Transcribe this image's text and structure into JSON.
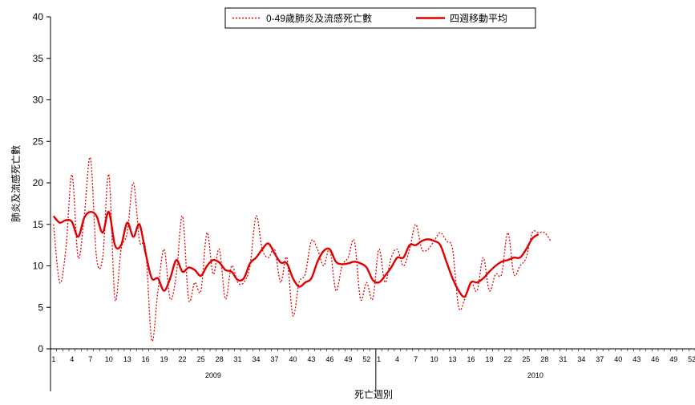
{
  "chart_data": {
    "type": "line",
    "xlabel": "死亡週別",
    "ylabel": "肺炎及流感死亡數",
    "ylim": [
      0,
      40
    ],
    "yticks": [
      0,
      5,
      10,
      15,
      20,
      25,
      30,
      35,
      40
    ],
    "legend_position": "top-right",
    "grid": false,
    "years": [
      {
        "label": "2009",
        "weeks": 53
      },
      {
        "label": "2010",
        "weeks": 52
      }
    ],
    "x_tick_labels": [
      {
        "year_index": 0,
        "week": 1,
        "label": "1"
      },
      {
        "year_index": 0,
        "week": 4,
        "label": "4"
      },
      {
        "year_index": 0,
        "week": 7,
        "label": "7"
      },
      {
        "year_index": 0,
        "week": 10,
        "label": "10"
      },
      {
        "year_index": 0,
        "week": 13,
        "label": "13"
      },
      {
        "year_index": 0,
        "week": 16,
        "label": "16"
      },
      {
        "year_index": 0,
        "week": 19,
        "label": "19"
      },
      {
        "year_index": 0,
        "week": 22,
        "label": "22"
      },
      {
        "year_index": 0,
        "week": 25,
        "label": "25"
      },
      {
        "year_index": 0,
        "week": 28,
        "label": "28"
      },
      {
        "year_index": 0,
        "week": 31,
        "label": "31"
      },
      {
        "year_index": 0,
        "week": 34,
        "label": "34"
      },
      {
        "year_index": 0,
        "week": 37,
        "label": "37"
      },
      {
        "year_index": 0,
        "week": 40,
        "label": "40"
      },
      {
        "year_index": 0,
        "week": 43,
        "label": "43"
      },
      {
        "year_index": 0,
        "week": 46,
        "label": "46"
      },
      {
        "year_index": 0,
        "week": 49,
        "label": "49"
      },
      {
        "year_index": 0,
        "week": 52,
        "label": "52"
      },
      {
        "year_index": 1,
        "week": 1,
        "label": "1"
      },
      {
        "year_index": 1,
        "week": 4,
        "label": "4"
      },
      {
        "year_index": 1,
        "week": 7,
        "label": "7"
      },
      {
        "year_index": 1,
        "week": 10,
        "label": "10"
      },
      {
        "year_index": 1,
        "week": 13,
        "label": "13"
      },
      {
        "year_index": 1,
        "week": 16,
        "label": "16"
      },
      {
        "year_index": 1,
        "week": 19,
        "label": "19"
      },
      {
        "year_index": 1,
        "week": 22,
        "label": "22"
      },
      {
        "year_index": 1,
        "week": 25,
        "label": "25"
      },
      {
        "year_index": 1,
        "week": 28,
        "label": "28"
      },
      {
        "year_index": 1,
        "week": 31,
        "label": "31"
      },
      {
        "year_index": 1,
        "week": 34,
        "label": "34"
      },
      {
        "year_index": 1,
        "week": 37,
        "label": "37"
      },
      {
        "year_index": 1,
        "week": 40,
        "label": "40"
      },
      {
        "year_index": 1,
        "week": 43,
        "label": "43"
      },
      {
        "year_index": 1,
        "week": 46,
        "label": "46"
      },
      {
        "year_index": 1,
        "week": 49,
        "label": "49"
      },
      {
        "year_index": 1,
        "week": 52,
        "label": "52"
      }
    ],
    "series": [
      {
        "name": "0-49歲肺炎及流感死亡數",
        "style": "dotted",
        "color": "#e00000",
        "values": [
          15,
          8,
          12,
          21,
          11,
          16,
          23,
          11,
          11,
          21,
          6,
          12,
          14,
          20,
          13,
          12,
          1,
          7,
          12,
          6,
          9,
          16,
          6,
          8,
          7,
          14,
          9,
          12,
          6,
          10,
          8,
          8,
          10,
          16,
          12,
          11,
          12,
          8,
          11,
          4,
          8,
          9,
          13,
          12,
          10,
          12,
          7,
          10,
          11,
          13,
          6,
          8,
          6,
          12,
          8,
          11,
          12,
          10,
          12,
          15,
          12,
          12,
          13,
          14,
          13,
          12,
          5,
          6,
          8,
          7,
          11,
          7,
          9,
          9,
          14,
          9,
          10,
          11,
          14,
          14,
          14,
          13
        ]
      },
      {
        "name": "四週移動平均",
        "style": "solid",
        "color": "#e00000",
        "values": [
          16,
          15.2,
          15.5,
          15.3,
          13.5,
          15.8,
          16.5,
          16,
          14,
          16.5,
          12.5,
          12.5,
          15.2,
          13.5,
          15,
          11.5,
          8.5,
          8.5,
          7,
          8.5,
          10.7,
          9.3,
          9.8,
          9.5,
          8.8,
          10,
          10.7,
          10.4,
          9.5,
          9.3,
          8.3,
          8.5,
          10.3,
          11,
          12,
          12.7,
          11.5,
          10.4,
          10.3,
          8.5,
          7.5,
          8,
          8.5,
          10.5,
          11.8,
          12,
          10.5,
          10.2,
          10.3,
          10.5,
          10.3,
          9.8,
          8.3,
          8,
          8.8,
          9.8,
          11,
          11,
          12.5,
          12.5,
          13,
          13.2,
          13,
          12.5,
          10.5,
          8.5,
          7,
          6.3,
          8,
          8,
          8.5,
          9.3,
          10,
          10.5,
          10.7,
          11,
          11,
          12,
          13.3,
          13.8
        ]
      }
    ]
  }
}
